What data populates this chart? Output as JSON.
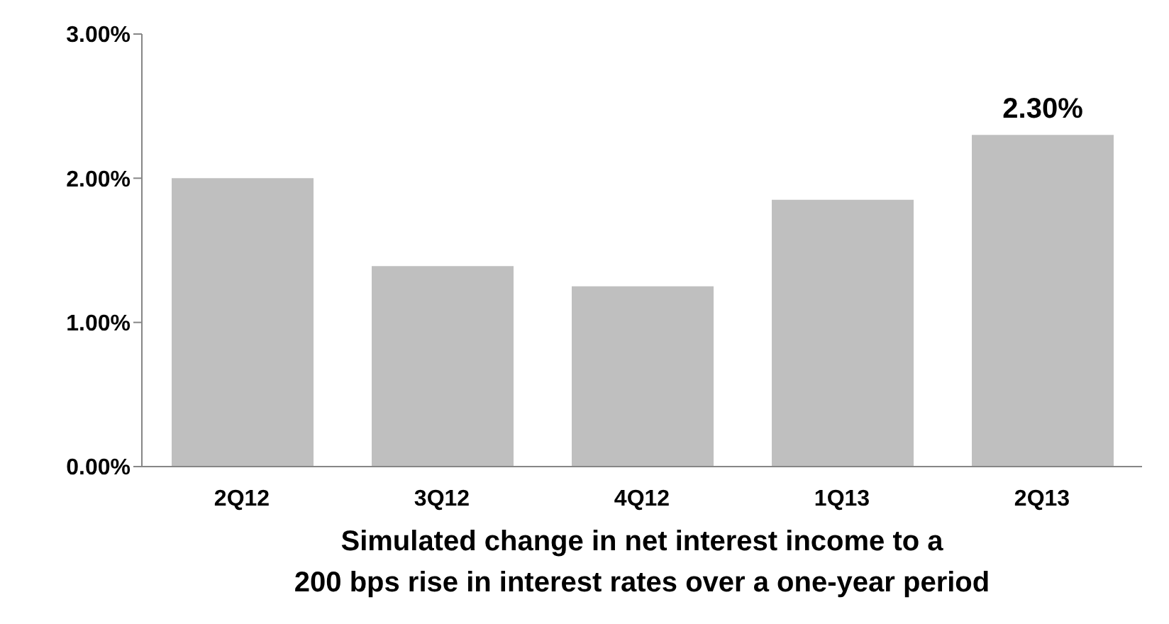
{
  "chart_data": {
    "type": "bar",
    "xlabel": "Simulated change in net interest income to a\n200 bps rise in interest rates over a one-year period",
    "categories": [
      "2Q12",
      "3Q12",
      "4Q12",
      "1Q13",
      "2Q13"
    ],
    "values": [
      2.0,
      1.39,
      1.25,
      1.85,
      2.3
    ],
    "color": "#bfbfbf",
    "value_labels": [
      null,
      null,
      null,
      null,
      "2.30%"
    ],
    "ylim": [
      0,
      3
    ],
    "yticks": [
      {
        "value": 0,
        "label": "0.00%"
      },
      {
        "value": 1,
        "label": "1.00%"
      },
      {
        "value": 2,
        "label": "2.00%"
      },
      {
        "value": 3,
        "label": "3.00%"
      }
    ],
    "grid": false,
    "legend": false
  }
}
